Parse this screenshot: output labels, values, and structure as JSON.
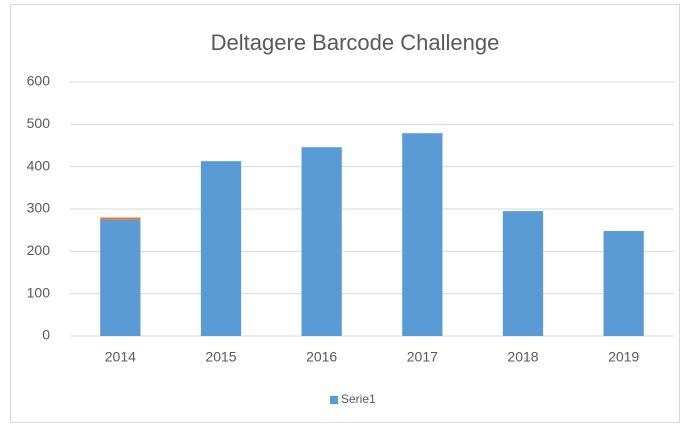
{
  "chart_data": {
    "type": "bar",
    "stacked": true,
    "title": "Deltagere Barcode Challenge",
    "categories": [
      "2014",
      "2015",
      "2016",
      "2017",
      "2018",
      "2019"
    ],
    "series": [
      {
        "name": "Serie1",
        "color": "#5b9bd5",
        "values": [
          275,
          413,
          446,
          479,
          295,
          248
        ]
      },
      {
        "color": "#ed7d31",
        "values": [
          5,
          null,
          null,
          null,
          null,
          null
        ]
      }
    ],
    "ylim": [
      0,
      600
    ],
    "yticks": [
      0,
      100,
      200,
      300,
      400,
      500,
      600
    ],
    "grid": true,
    "legend": "bottom"
  }
}
